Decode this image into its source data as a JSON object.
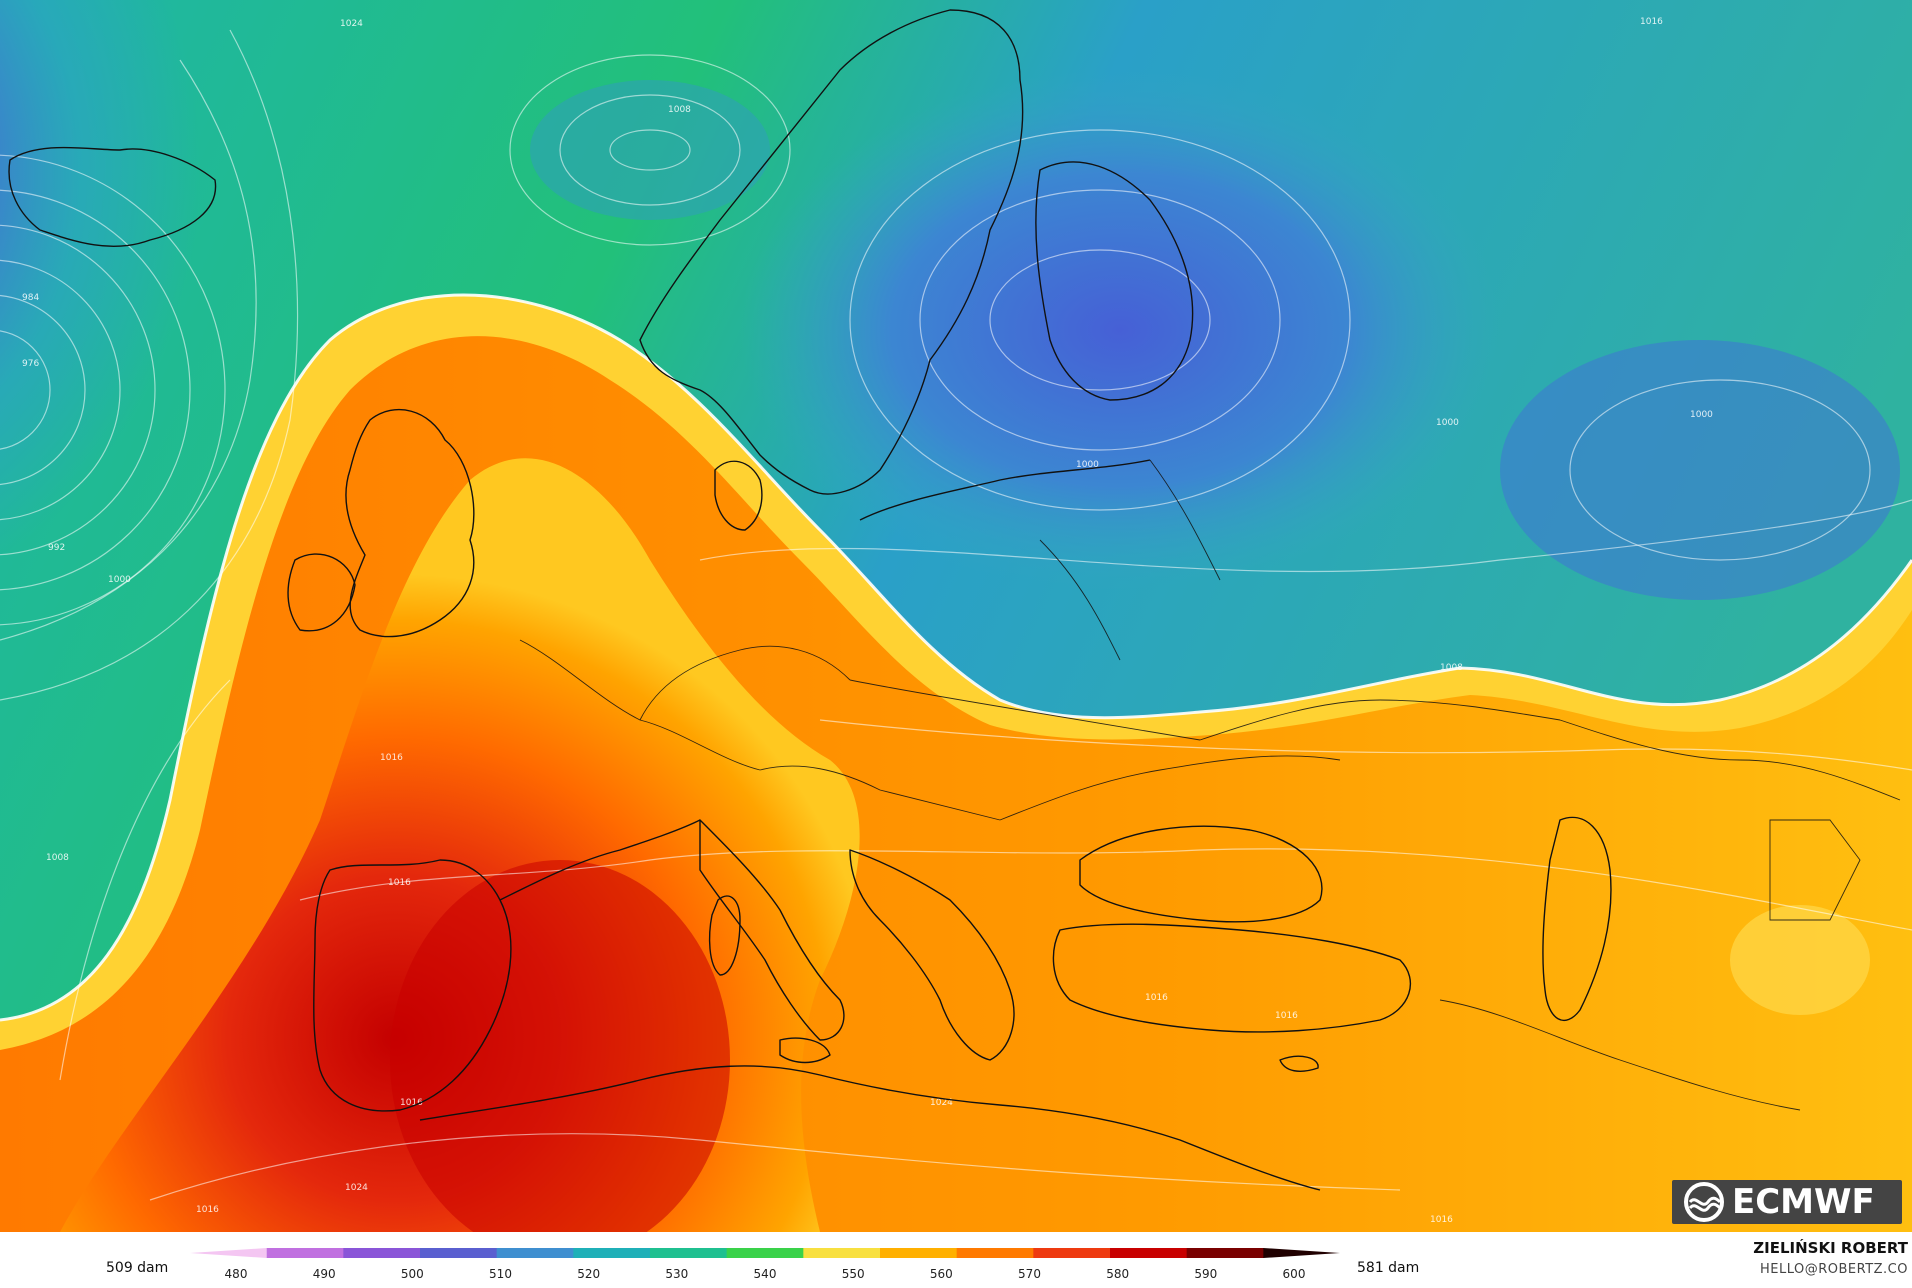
{
  "legend": {
    "min_label": "509 dam",
    "max_label": "581 dam",
    "ticks": [
      "480",
      "490",
      "500",
      "510",
      "520",
      "530",
      "540",
      "550",
      "560",
      "570",
      "580",
      "590",
      "600"
    ],
    "colors": [
      "#f4c6f2",
      "#c070e0",
      "#8a55d8",
      "#5a5fd0",
      "#3f8fd0",
      "#1fb0b8",
      "#1fc090",
      "#3ad24a",
      "#f8e040",
      "#ffb000",
      "#ff7a00",
      "#ee3a10",
      "#c80000",
      "#7a0000",
      "#200000"
    ]
  },
  "isobar_labels": [
    "1024",
    "1008",
    "1016",
    "1000",
    "1000",
    "1000",
    "1008",
    "984",
    "976",
    "992",
    "1000",
    "1016",
    "1016",
    "1016",
    "1024",
    "1016",
    "1016",
    "1016",
    "1024",
    "1016",
    "1008"
  ],
  "credit": {
    "name": "ZIELIŃSKI ROBERT",
    "email": "HELLO@ROBERTZ.CO"
  },
  "logo": {
    "text": "ECMWF"
  },
  "map": {
    "variable_colors": {
      "low_center": "#8a4fe0",
      "cold": "#3f66d8",
      "mid": "#1fb27a",
      "warm_edge": "#ffd23a",
      "hot": "#e8280c",
      "hottest": "#c00000"
    }
  }
}
